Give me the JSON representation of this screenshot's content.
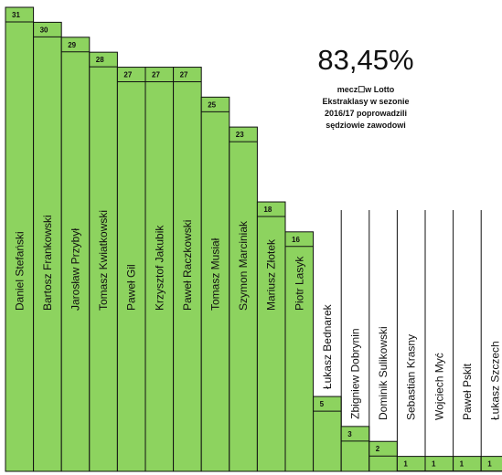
{
  "chart_data": {
    "type": "bar",
    "title": "",
    "xlabel": "",
    "ylabel": "",
    "ylim": [
      0,
      31
    ],
    "grid": false,
    "legend": "none",
    "categories": [
      "Daniel Stefański",
      "Bartosz Frankowski",
      "Jarosław Przybył",
      "Tomasz Kwiatkowski",
      "Paweł Gil",
      "Krzysztof Jakubik",
      "Paweł Raczkowski",
      "Tomasz Musiał",
      "Szymon Marciniak",
      "Mariusz Złotek",
      "Piotr Lasyk",
      "Łukasz Bednarek",
      "Zbigniew Dobrynin",
      "Dominik Sulikowski",
      "Sebastian Krasny",
      "Wojciech Myć",
      "Paweł Pskit",
      "Łukasz Szczech"
    ],
    "values": [
      31,
      30,
      29,
      28,
      27,
      27,
      27,
      25,
      23,
      18,
      16,
      5,
      3,
      2,
      1,
      1,
      1,
      1
    ],
    "colors": {
      "bar": "#8dd35f",
      "bar_stroke": "#111111",
      "grid_line": "#111111"
    }
  },
  "annotation": {
    "headline": "83,45%",
    "caption": "mecz☐w Lotto\nEkstraklasy w sezonie\n2016/17 poprowadzili\nsędziowie zawodowi"
  }
}
